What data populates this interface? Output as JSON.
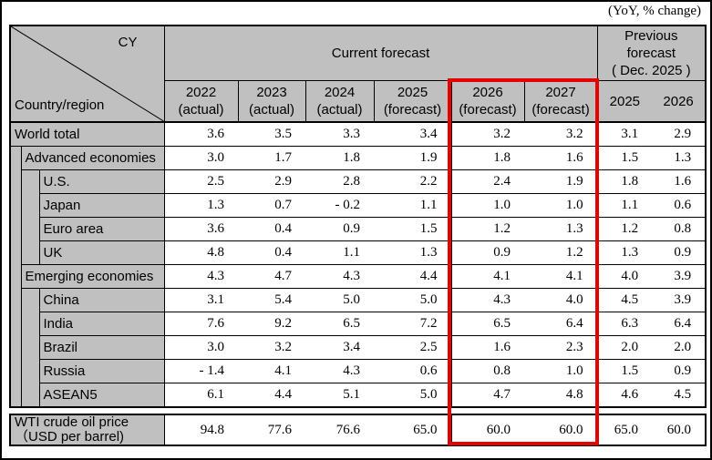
{
  "note": "(YoY, % change)",
  "header": {
    "corner_top": "CY",
    "corner_bottom": "Country/region",
    "current_forecast": "Current forecast",
    "previous_forecast": "Previous\nforecast\n( Dec. 2025 )",
    "columns": [
      {
        "year": "2022",
        "sub": "(actual)"
      },
      {
        "year": "2023",
        "sub": "(actual)"
      },
      {
        "year": "2024",
        "sub": "(actual)"
      },
      {
        "year": "2025",
        "sub": "(forecast)"
      },
      {
        "year": "2026",
        "sub": "(forecast)"
      },
      {
        "year": "2027",
        "sub": "(forecast)"
      }
    ],
    "previous_columns": [
      "2025",
      "2026"
    ]
  },
  "rows": [
    {
      "label": "World total",
      "level": 0,
      "values": [
        "3.6",
        "3.5",
        "3.3",
        "3.4",
        "3.2",
        "3.2",
        "3.1",
        "2.9"
      ]
    },
    {
      "label": "Advanced economies",
      "level": 1,
      "values": [
        "3.0",
        "1.7",
        "1.8",
        "1.9",
        "1.8",
        "1.6",
        "1.5",
        "1.3"
      ]
    },
    {
      "label": "U.S.",
      "level": 2,
      "values": [
        "2.5",
        "2.9",
        "2.8",
        "2.2",
        "2.4",
        "1.9",
        "1.8",
        "1.6"
      ]
    },
    {
      "label": "Japan",
      "level": 2,
      "values": [
        "1.3",
        "0.7",
        "- 0.2",
        "1.1",
        "1.0",
        "1.0",
        "1.1",
        "0.6"
      ]
    },
    {
      "label": "Euro area",
      "level": 2,
      "values": [
        "3.6",
        "0.4",
        "0.9",
        "1.5",
        "1.2",
        "1.3",
        "1.2",
        "0.8"
      ]
    },
    {
      "label": "UK",
      "level": 2,
      "values": [
        "4.8",
        "0.4",
        "1.1",
        "1.3",
        "0.9",
        "1.2",
        "1.3",
        "0.9"
      ]
    },
    {
      "label": "Emerging economies",
      "level": 1,
      "values": [
        "4.3",
        "4.7",
        "4.3",
        "4.4",
        "4.1",
        "4.1",
        "4.0",
        "3.9"
      ]
    },
    {
      "label": "China",
      "level": 2,
      "values": [
        "3.1",
        "5.4",
        "5.0",
        "5.0",
        "4.3",
        "4.0",
        "4.5",
        "3.9"
      ]
    },
    {
      "label": "India",
      "level": 2,
      "values": [
        "7.6",
        "9.2",
        "6.5",
        "7.2",
        "6.5",
        "6.4",
        "6.3",
        "6.4"
      ]
    },
    {
      "label": "Brazil",
      "level": 2,
      "values": [
        "3.0",
        "3.2",
        "3.4",
        "2.5",
        "1.6",
        "2.3",
        "2.0",
        "2.0"
      ]
    },
    {
      "label": "Russia",
      "level": 2,
      "values": [
        "- 1.4",
        "4.1",
        "4.3",
        "0.6",
        "0.8",
        "1.0",
        "1.5",
        "0.9"
      ]
    },
    {
      "label": "ASEAN5",
      "level": 2,
      "values": [
        "6.1",
        "4.4",
        "5.1",
        "5.0",
        "4.7",
        "4.8",
        "4.6",
        "4.5"
      ]
    }
  ],
  "wti": {
    "label": "WTI crude oil price\n（USD per barrel)",
    "values": [
      "94.8",
      "77.6",
      "76.6",
      "65.0",
      "60.0",
      "60.0",
      "65.0",
      "60.0"
    ]
  },
  "colors": {
    "header_bg": "#c0c0c0",
    "highlight_box": "#e60000",
    "grid": "#000000"
  }
}
